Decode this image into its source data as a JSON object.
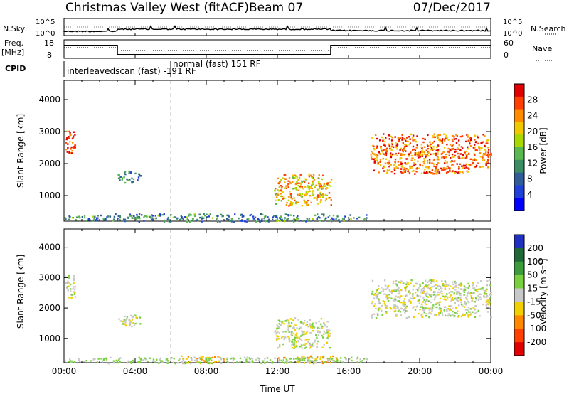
{
  "header": {
    "title": "Christmas Valley West (fitACF)",
    "beam": "Beam 07",
    "date": "07/Dec/2017"
  },
  "ancillary": {
    "nsky_label": "N.Sky",
    "nsearch_label": "N.Search",
    "sky_ticks": [
      "10^5",
      "10^0"
    ],
    "sky_right_ticks": [
      "10^5",
      "10^0"
    ],
    "freq_label": "Freq.",
    "freq_unit": "[MHz]",
    "freq_ticks": [
      "18",
      "8"
    ],
    "nave_label": "Nave",
    "nave_ticks": [
      "60",
      "0"
    ],
    "cpid_label": "CPID",
    "cpid_left": "interleavedscan (fast)  -191 RF",
    "cpid_right": "normal (fast)  151 RF"
  },
  "power_panel": {
    "ylabel": "Slant Range [km]",
    "colorbar_label": "Power [dB]",
    "colorbar_ticks": [
      "28",
      "24",
      "20",
      "16",
      "12",
      "8",
      "4"
    ],
    "colorbar_colors": [
      "#e00000",
      "#ff4000",
      "#ff8c00",
      "#f0c800",
      "#a8d800",
      "#5ab850",
      "#3c8c64",
      "#305c98",
      "#2040d8",
      "#0000ff"
    ]
  },
  "velocity_panel": {
    "ylabel": "Slant Range [km]",
    "colorbar_label": "Velocity [m s⁻¹]",
    "colorbar_ticks": [
      "200",
      "100",
      "50",
      "15",
      "-15",
      "-50",
      "-100",
      "-200"
    ],
    "colorbar_colors": [
      "#2030c0",
      "#206838",
      "#3c9c3c",
      "#78d040",
      "#c8c8c8",
      "#f0d000",
      "#ff8800",
      "#ff4000",
      "#e00000"
    ]
  },
  "chart_data": [
    {
      "type": "heatmap",
      "title": "Christmas Valley West (fitACF)",
      "xlabel": "Time UT",
      "ylabel": "Slant Range [km]",
      "colorbar": "Power [dB]",
      "xticks": [
        "00:00",
        "04:00",
        "08:00",
        "12:00",
        "16:00",
        "20:00",
        "00:00"
      ],
      "xlim_hours": [
        0,
        24
      ],
      "yticks": [
        1000,
        2000,
        3000,
        4000
      ],
      "ylim": [
        200,
        4600
      ],
      "zlim": [
        0,
        30
      ],
      "echo_regions": [
        {
          "t": [
            0.0,
            0.6
          ],
          "r": [
            2300,
            3100
          ],
          "value": 26
        },
        {
          "t": [
            3.0,
            4.3
          ],
          "r": [
            1400,
            1800
          ],
          "value": 10
        },
        {
          "t": [
            11.8,
            15.0
          ],
          "r": [
            700,
            1700
          ],
          "value": 20
        },
        {
          "t": [
            17.2,
            24.0
          ],
          "r": [
            1700,
            2950
          ],
          "value": 24
        },
        {
          "t": [
            0.0,
            17.0
          ],
          "r": [
            200,
            450
          ],
          "value": 10
        }
      ]
    },
    {
      "type": "heatmap",
      "title": "",
      "xlabel": "Time UT",
      "ylabel": "Slant Range [km]",
      "colorbar": "Velocity [m s⁻¹]",
      "xticks": [
        "00:00",
        "04:00",
        "08:00",
        "12:00",
        "16:00",
        "20:00",
        "00:00"
      ],
      "xlim_hours": [
        0,
        24
      ],
      "yticks": [
        1000,
        2000,
        3000,
        4000
      ],
      "ylim": [
        200,
        4600
      ],
      "zlim": [
        -200,
        200
      ],
      "echo_regions": [
        {
          "t": [
            0.0,
            0.6
          ],
          "r": [
            2300,
            3100
          ],
          "value": 0
        },
        {
          "t": [
            3.0,
            4.3
          ],
          "r": [
            1400,
            1800
          ],
          "value": 0
        },
        {
          "t": [
            11.8,
            15.0
          ],
          "r": [
            700,
            1700
          ],
          "value": 0
        },
        {
          "t": [
            17.2,
            24.0
          ],
          "r": [
            1700,
            2950
          ],
          "value": 0
        },
        {
          "t": [
            6.5,
            9.0
          ],
          "r": [
            200,
            450
          ],
          "value": -50
        },
        {
          "t": [
            12.0,
            15.5
          ],
          "r": [
            200,
            450
          ],
          "value": -40
        },
        {
          "t": [
            0.0,
            17.0
          ],
          "r": [
            200,
            400
          ],
          "value": 20
        }
      ]
    },
    {
      "type": "line",
      "title": "",
      "name_left": "Freq.",
      "name_right": "Nave",
      "ylim": [
        8,
        18
      ],
      "x_hours": [
        0,
        3.0,
        3.0,
        15.0,
        15.0,
        24
      ],
      "freq_mhz": [
        15,
        15,
        10,
        10,
        15,
        15
      ]
    }
  ]
}
